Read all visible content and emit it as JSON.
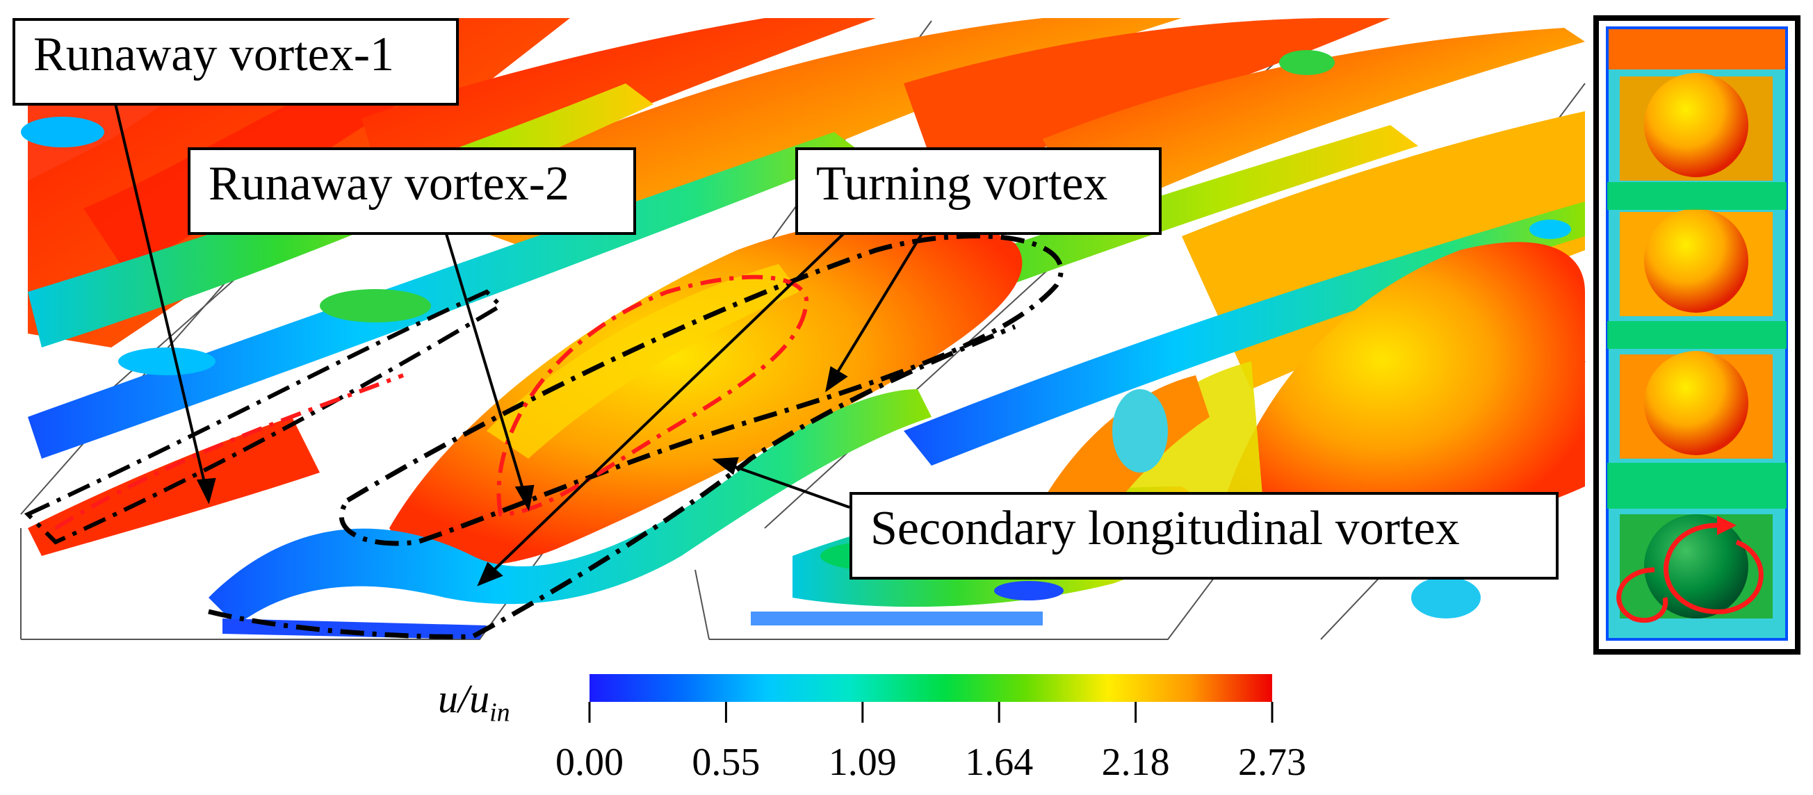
{
  "annotations": {
    "runaway_vortex_1": "Runaway vortex-1",
    "runaway_vortex_2": "Runaway vortex-2",
    "turning_vortex": "Turning vortex",
    "secondary_longitudinal_vortex": "Secondary longitudinal vortex"
  },
  "colorbar": {
    "variable": "u/u",
    "variable_subscript": "in",
    "ticks": [
      "0.00",
      "0.55",
      "1.09",
      "1.64",
      "2.18",
      "2.73"
    ],
    "range": [
      0.0,
      2.73
    ],
    "colors": [
      "#1a1aff",
      "#00a0ff",
      "#00e6e6",
      "#00dd44",
      "#66dd00",
      "#ffee00",
      "#ffaa00",
      "#ff3300",
      "#ee0000"
    ]
  },
  "outline_colors": {
    "black_dashdot": "#000000",
    "red_dashdot": "#ff1a1a",
    "rotation_marker": "#ff1a1a"
  }
}
